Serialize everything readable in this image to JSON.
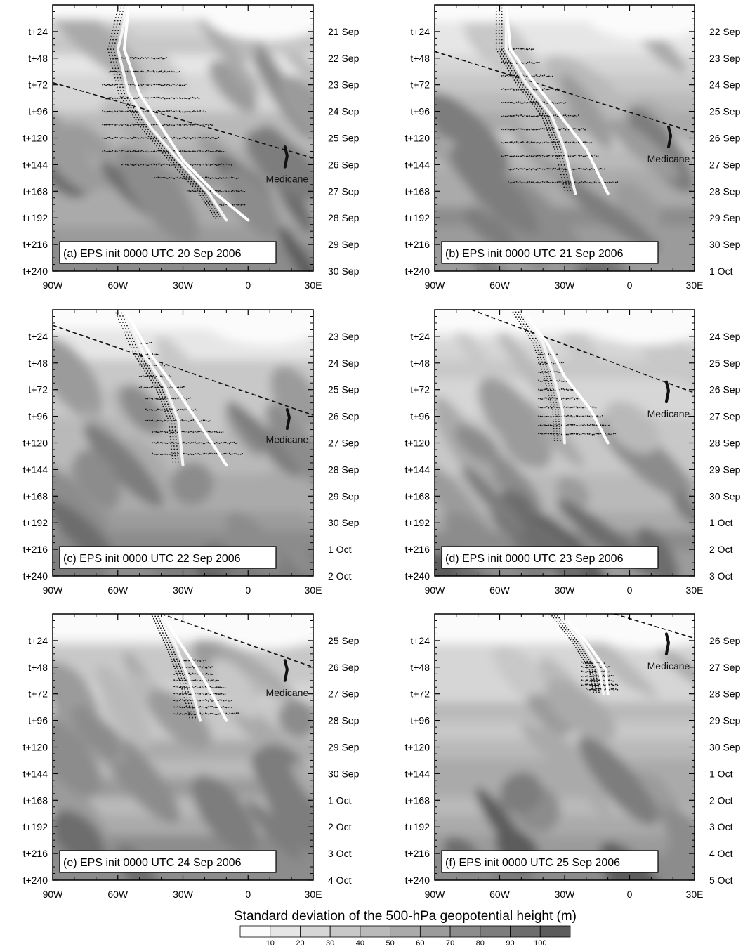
{
  "chart_data": {
    "type": "contour",
    "colorbar": {
      "title": "Standard deviation of the 500-hPa geopotential height (m)",
      "levels": [
        10,
        20,
        30,
        40,
        50,
        60,
        70,
        80,
        90,
        100
      ],
      "level_labels": [
        "10",
        "20",
        "30",
        "40",
        "50",
        "60",
        "70",
        "80",
        "90",
        "100"
      ],
      "colors": [
        "#fbfbfb",
        "#e6e6e6",
        "#d6d6d6",
        "#c8c8c8",
        "#b9b9b9",
        "#aaaaaa",
        "#9b9b9b",
        "#8c8c8c",
        "#7d7d7d",
        "#6d6d6d",
        "#5c5c5c"
      ]
    },
    "x_axis": {
      "range": [
        -90,
        30
      ],
      "ticks": [
        -90,
        -60,
        -30,
        0,
        30
      ],
      "tick_labels": [
        "90W",
        "60W",
        "30W",
        "0",
        "30E"
      ]
    },
    "y_axis_left": {
      "range_hours": [
        0,
        240
      ],
      "ticks": [
        24,
        48,
        72,
        96,
        120,
        144,
        168,
        192,
        216,
        240
      ],
      "tick_labels": [
        "t+24",
        "t+48",
        "t+72",
        "t+96",
        "t+120",
        "t+144",
        "t+168",
        "t+192",
        "t+216",
        "t+240"
      ]
    },
    "medicane_label": "Medicane",
    "panels": [
      {
        "label": "(a) EPS init 0000 UTC 20 Sep 2006",
        "right_dates": [
          "21 Sep",
          "22 Sep",
          "23 Sep",
          "24 Sep",
          "25 Sep",
          "26 Sep",
          "27 Sep",
          "28 Sep",
          "29 Sep",
          "30 Sep"
        ],
        "dashed_line": [
          [
            -90,
            70
          ],
          [
            30,
            138
          ]
        ],
        "medicane_track": [
          [
            17,
            128
          ],
          [
            18,
            136
          ],
          [
            17,
            146
          ]
        ],
        "medicane_label_pos": [
          18,
          160
        ],
        "tracks": [
          [
            [
              -55,
              0
            ],
            [
              -60,
              40
            ],
            [
              -55,
              80
            ],
            [
              -45,
              110
            ],
            [
              -32,
              140
            ],
            [
              -18,
              170
            ],
            [
              -10,
              194
            ]
          ],
          [
            [
              -55,
              0
            ],
            [
              -57,
              40
            ],
            [
              -50,
              80
            ],
            [
              -40,
              110
            ],
            [
              -30,
              140
            ],
            [
              -15,
              170
            ],
            [
              0,
              194
            ]
          ]
        ],
        "dot_columns": [
          -67,
          -64,
          -61,
          -58,
          -55,
          -52,
          -49,
          -46,
          -43,
          -40,
          -37,
          -34,
          -31,
          -28,
          -25,
          -22,
          -19,
          -16,
          -13,
          -10,
          -7,
          -4,
          -1,
          2
        ],
        "dot_rows": [
          48,
          60,
          72,
          84,
          96,
          108,
          120,
          132,
          144,
          156,
          168,
          180,
          192
        ],
        "dot_envelope": [
          [
            -56,
            0
          ],
          [
            -70,
            90
          ],
          [
            -78,
            130
          ],
          [
            2,
            194
          ],
          [
            -8,
            150
          ],
          [
            -25,
            80
          ]
        ]
      },
      {
        "label": "(b) EPS init 0000 UTC 21 Sep 2006",
        "right_dates": [
          "22 Sep",
          "23 Sep",
          "24 Sep",
          "25 Sep",
          "26 Sep",
          "27 Sep",
          "28 Sep",
          "29 Sep",
          "30 Sep",
          "1 Oct"
        ],
        "dashed_line": [
          [
            -90,
            42
          ],
          [
            30,
            115
          ]
        ],
        "medicane_track": [
          [
            18,
            110
          ],
          [
            19,
            118
          ],
          [
            18,
            128
          ]
        ],
        "medicane_label_pos": [
          18,
          142
        ],
        "tracks": [
          [
            [
              -57,
              0
            ],
            [
              -57,
              40
            ],
            [
              -48,
              70
            ],
            [
              -36,
              100
            ],
            [
              -30,
              130
            ],
            [
              -25,
              170
            ]
          ],
          [
            [
              -57,
              0
            ],
            [
              -55,
              40
            ],
            [
              -44,
              70
            ],
            [
              -32,
              100
            ],
            [
              -20,
              130
            ],
            [
              -10,
              170
            ]
          ]
        ],
        "dot_columns": [
          -62,
          -59,
          -56,
          -53,
          -50,
          -47,
          -44,
          -41,
          -38,
          -35,
          -32,
          -29,
          -26,
          -23,
          -20,
          -17,
          -14,
          -11,
          -8,
          -5
        ],
        "dot_rows": [
          40,
          52,
          64,
          76,
          88,
          100,
          112,
          124,
          136,
          148,
          160,
          170
        ],
        "dot_envelope": [
          [
            -57,
            0
          ],
          [
            -62,
            60
          ],
          [
            -58,
            170
          ],
          [
            -5,
            170
          ],
          [
            -25,
            100
          ],
          [
            -45,
            40
          ]
        ]
      },
      {
        "label": "(c) EPS init 0000 UTC 22 Sep 2006",
        "right_dates": [
          "23 Sep",
          "24 Sep",
          "25 Sep",
          "26 Sep",
          "27 Sep",
          "28 Sep",
          "29 Sep",
          "30 Sep",
          "1 Oct",
          "2 Oct"
        ],
        "dashed_line": [
          [
            -90,
            14
          ],
          [
            30,
            95
          ]
        ],
        "medicane_track": [
          [
            18,
            90
          ],
          [
            19,
            97
          ],
          [
            18,
            107
          ]
        ],
        "medicane_label_pos": [
          18,
          120
        ],
        "tracks": [
          [
            [
              -57,
              0
            ],
            [
              -48,
              40
            ],
            [
              -38,
              70
            ],
            [
              -32,
              100
            ],
            [
              -30,
              140
            ]
          ],
          [
            [
              -57,
              0
            ],
            [
              -45,
              40
            ],
            [
              -32,
              75
            ],
            [
              -20,
              110
            ],
            [
              -10,
              140
            ]
          ]
        ],
        "dot_columns": [
          -50,
          -47,
          -44,
          -41,
          -38,
          -35,
          -32,
          -29,
          -26,
          -23,
          -20,
          -17,
          -14,
          -11,
          -8,
          -5
        ],
        "dot_rows": [
          30,
          40,
          50,
          60,
          70,
          80,
          90,
          100,
          110,
          120,
          130,
          140
        ],
        "dot_envelope": [
          [
            -57,
            0
          ],
          [
            -44,
            140
          ],
          [
            5,
            140
          ],
          [
            -25,
            90
          ],
          [
            -45,
            30
          ]
        ]
      },
      {
        "label": "(d) EPS init 0000 UTC 23 Sep 2006",
        "right_dates": [
          "24 Sep",
          "25 Sep",
          "26 Sep",
          "27 Sep",
          "28 Sep",
          "29 Sep",
          "30 Sep",
          "1 Oct",
          "2 Oct",
          "3 Oct"
        ],
        "dashed_line": [
          [
            -73,
            0
          ],
          [
            30,
            75
          ]
        ],
        "medicane_track": [
          [
            17,
            65
          ],
          [
            18,
            73
          ],
          [
            17,
            83
          ]
        ],
        "medicane_label_pos": [
          18,
          97
        ],
        "tracks": [
          [
            [
              -50,
              0
            ],
            [
              -40,
              30
            ],
            [
              -35,
              60
            ],
            [
              -31,
              90
            ],
            [
              -30,
              120
            ]
          ],
          [
            [
              -50,
              0
            ],
            [
              -38,
              30
            ],
            [
              -30,
              60
            ],
            [
              -18,
              90
            ],
            [
              -10,
              120
            ]
          ]
        ],
        "dot_columns": [
          -42,
          -39,
          -36,
          -33,
          -30,
          -27,
          -24,
          -21,
          -18,
          -15,
          -12,
          -9,
          -6
        ],
        "dot_rows": [
          40,
          48,
          56,
          64,
          72,
          80,
          88,
          96,
          104,
          112,
          120
        ],
        "dot_envelope": [
          [
            -50,
            0
          ],
          [
            -42,
            120
          ],
          [
            -5,
            120
          ],
          [
            -25,
            70
          ]
        ]
      },
      {
        "label": "(e) EPS init 0000 UTC 24 Sep 2006",
        "right_dates": [
          "25 Sep",
          "26 Sep",
          "27 Sep",
          "28 Sep",
          "29 Sep",
          "30 Sep",
          "1 Oct",
          "2 Oct",
          "3 Oct",
          "4 Oct"
        ],
        "dashed_line": [
          [
            -40,
            0
          ],
          [
            30,
            48
          ]
        ],
        "medicane_track": [
          [
            17,
            42
          ],
          [
            18,
            50
          ],
          [
            17,
            60
          ]
        ],
        "medicane_label_pos": [
          18,
          74
        ],
        "tracks": [
          [
            [
              -40,
              0
            ],
            [
              -33,
              30
            ],
            [
              -27,
              60
            ],
            [
              -22,
              96
            ]
          ],
          [
            [
              -40,
              0
            ],
            [
              -30,
              30
            ],
            [
              -20,
              60
            ],
            [
              -10,
              96
            ]
          ]
        ],
        "dot_columns": [
          -34,
          -31,
          -28,
          -25,
          -22,
          -19,
          -16,
          -13,
          -10,
          -7
        ],
        "dot_rows": [
          42,
          48,
          54,
          60,
          66,
          72,
          78,
          84,
          90,
          96
        ],
        "dot_envelope": [
          [
            -40,
            0
          ],
          [
            -34,
            96
          ],
          [
            -4,
            96
          ],
          [
            -20,
            40
          ]
        ]
      },
      {
        "label": "(f) EPS init 0000 UTC 25 Sep 2006",
        "right_dates": [
          "26 Sep",
          "27 Sep",
          "28 Sep",
          "29 Sep",
          "30 Sep",
          "1 Oct",
          "2 Oct",
          "3 Oct",
          "4 Oct",
          "5 Oct"
        ],
        "dashed_line": [
          [
            -7,
            0
          ],
          [
            30,
            22
          ]
        ],
        "medicane_track": [
          [
            17,
            18
          ],
          [
            18,
            26
          ],
          [
            17,
            36
          ]
        ],
        "medicane_label_pos": [
          18,
          50
        ],
        "tracks": [
          [
            [
              -32,
              0
            ],
            [
              -22,
              25
            ],
            [
              -14,
              50
            ],
            [
              -12,
              72
            ]
          ],
          [
            [
              -32,
              0
            ],
            [
              -20,
              25
            ],
            [
              -11,
              50
            ],
            [
              -10,
              72
            ]
          ]
        ],
        "dot_columns": [
          -22,
          -20,
          -18,
          -16,
          -14,
          -12,
          -10,
          -8
        ],
        "dot_rows": [
          44,
          48,
          52,
          56,
          60,
          64,
          68,
          72
        ],
        "dot_envelope": [
          [
            -30,
            0
          ],
          [
            -21,
            72
          ],
          [
            -6,
            72
          ],
          [
            -15,
            30
          ]
        ]
      }
    ]
  }
}
